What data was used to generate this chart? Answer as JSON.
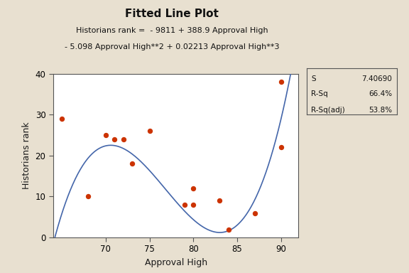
{
  "title": "Fitted Line Plot",
  "subtitle_line1": "Historians rank =  - 9811 + 388.9 Approval High",
  "subtitle_line2": "- 5.098 Approval High**2 + 0.02213 Approval High**3",
  "xlabel": "Approval High",
  "ylabel": "Historians rank",
  "bg_color": "#E8E0D0",
  "plot_bg_color": "#FFFFFF",
  "scatter_x": [
    65,
    68,
    70,
    71,
    72,
    73,
    75,
    79,
    80,
    80,
    83,
    84,
    87,
    90,
    90
  ],
  "scatter_y": [
    29,
    10,
    25,
    24,
    24,
    18,
    26,
    8,
    12,
    8,
    9,
    2,
    6,
    22,
    38
  ],
  "scatter_color": "#CC3300",
  "line_color": "#4466AA",
  "coeffs": [
    -9811,
    388.9,
    -5.098,
    0.02213
  ],
  "xlim": [
    64,
    92
  ],
  "ylim": [
    0,
    40
  ],
  "xticks": [
    70,
    75,
    80,
    85,
    90
  ],
  "yticks": [
    0,
    10,
    20,
    30,
    40
  ],
  "stats_S": "7.40690",
  "stats_Rsq": "66.4%",
  "stats_Rsqadj": "53.8%"
}
